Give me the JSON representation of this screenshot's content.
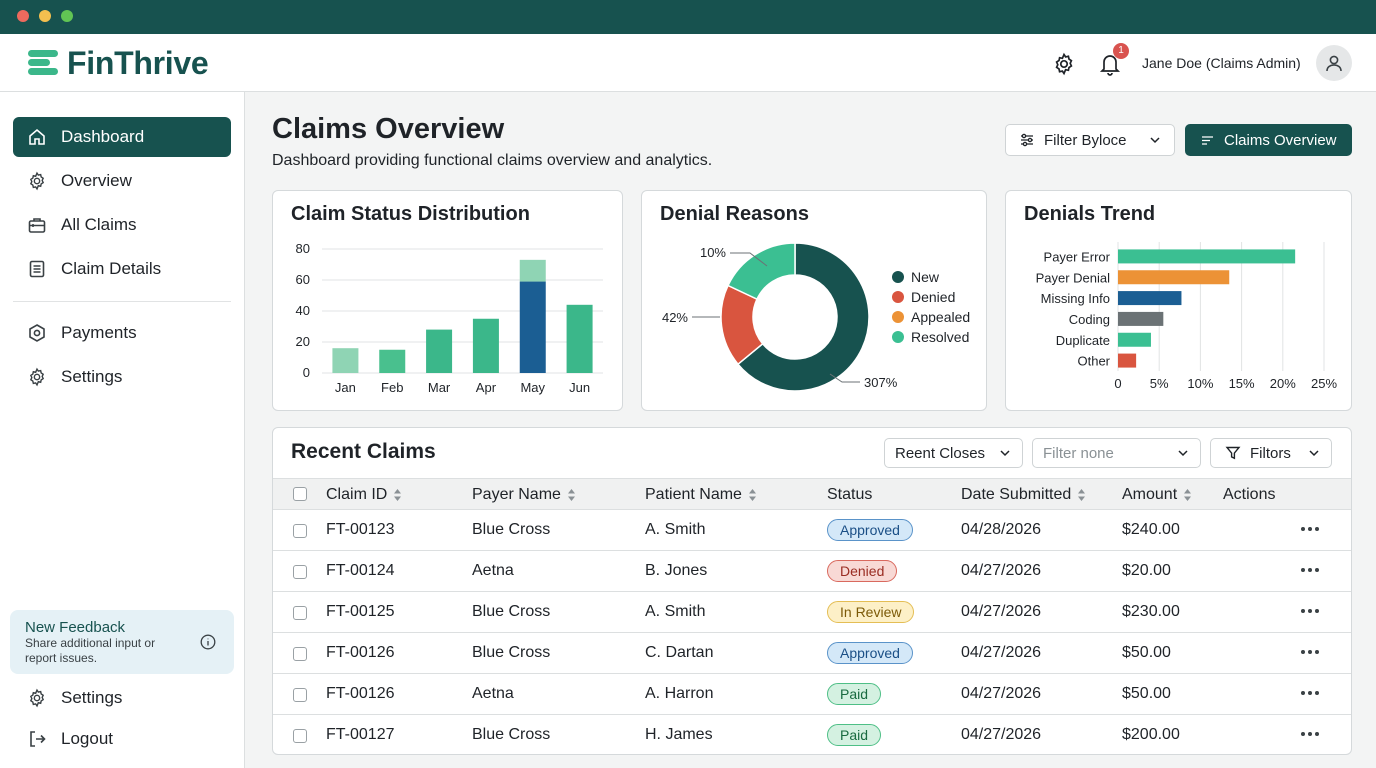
{
  "brand": {
    "name": "FinThrive",
    "primary": "#17524f",
    "accent": "#3bb78a"
  },
  "header": {
    "user": "Jane Doe (Claims Admin)",
    "notifications": "1",
    "settings_icon": "gear-icon",
    "bell_icon": "bell-icon",
    "avatar_icon": "user-icon"
  },
  "sidebar": {
    "items": [
      {
        "label": "Dashboard",
        "icon": "home-icon",
        "active": true
      },
      {
        "label": "Overview",
        "icon": "gear-icon"
      },
      {
        "label": "All Claims",
        "icon": "briefcase-icon"
      },
      {
        "label": "Claim Details",
        "icon": "document-icon"
      },
      {
        "label": "Payments",
        "icon": "payments-icon"
      },
      {
        "label": "Settings",
        "icon": "gear-icon"
      }
    ],
    "feedback": {
      "title": "New Feedback",
      "text": "Share additional input or report issues."
    },
    "bottom": [
      {
        "label": "Settings",
        "icon": "gear-icon"
      },
      {
        "label": "Logout",
        "icon": "logout-icon"
      }
    ]
  },
  "page": {
    "title": "Claims Overview",
    "subtitle": "Dashboard providing functional claims overview and analytics.",
    "filter_label": "Filter Byloce",
    "overview_button": "Claims Overview"
  },
  "charts": {
    "status_title": "Claim Status Distribution",
    "denial_title": "Denial Reasons",
    "trend_title": "Denials Trend"
  },
  "chart_data": [
    {
      "type": "bar",
      "title": "Claim Status Distribution",
      "categories": [
        "Jan",
        "Feb",
        "Mar",
        "Apr",
        "May",
        "Jun"
      ],
      "series": [
        {
          "values": [
            16,
            15,
            28,
            35,
            59,
            44
          ],
          "colors": [
            "#8fd4b4",
            "#49c08e",
            "#3bb78a",
            "#3bb78a",
            "#1b5e93",
            "#3bb78a"
          ]
        },
        {
          "values": [
            0,
            0,
            0,
            0,
            14,
            0
          ],
          "colors": [
            "#8fd4b4",
            "#8fd4b4",
            "#8fd4b4",
            "#8fd4b4",
            "#8fd4b4",
            "#8fd4b4"
          ]
        }
      ],
      "ylim": [
        0,
        80
      ],
      "yticks": [
        0,
        20,
        40,
        60,
        80
      ],
      "grid": true
    },
    {
      "type": "pie",
      "title": "Denial Reasons",
      "slices": [
        {
          "label": "New",
          "value": 64,
          "color": "#17524f"
        },
        {
          "label": "Denied",
          "value": 18,
          "color": "#d9553f"
        },
        {
          "label": "Appealed",
          "value": 0,
          "color": "#ec9236"
        },
        {
          "label": "Resolved",
          "value": 18,
          "color": "#3bbf92"
        }
      ],
      "annotations": [
        "10%",
        "42%",
        "307%"
      ],
      "legend": "right"
    },
    {
      "type": "bar",
      "orientation": "horizontal",
      "title": "Denials Trend",
      "categories": [
        "Payer Error",
        "Payer Denial",
        "Missing Info",
        "Coding",
        "Duplicate",
        "Other"
      ],
      "values": [
        21.5,
        13.5,
        7.7,
        5.5,
        4,
        2.2
      ],
      "colors": [
        "#3bbf92",
        "#ec9236",
        "#1b5e93",
        "#6b7275",
        "#3bbf92",
        "#d9553f"
      ],
      "xlim": [
        0,
        25
      ],
      "xticks": [
        "0",
        "5%",
        "10%",
        "15%",
        "20%",
        "25%"
      ],
      "grid": true
    }
  ],
  "table": {
    "title": "Recent Claims",
    "filters": {
      "sort": "Reent Closes",
      "filter_placeholder": "Filter none",
      "filters_button": "Filtors"
    },
    "columns": [
      "Claim ID",
      "Payer Name",
      "Patient Name",
      "Status",
      "Date Submitted",
      "Amount",
      "Actions"
    ],
    "rows": [
      {
        "id": "FT-00123",
        "payer": "Blue Cross",
        "patient": "A. Smith",
        "status": "Approved",
        "date": "04/28/2026",
        "amount": "$240.00"
      },
      {
        "id": "FT-00124",
        "payer": "Aetna",
        "patient": "B. Jones",
        "status": "Denied",
        "date": "04/27/2026",
        "amount": "$20.00"
      },
      {
        "id": "FT-00125",
        "payer": "Blue Cross",
        "patient": "A. Smith",
        "status": "In Review",
        "date": "04/27/2026",
        "amount": "$230.00"
      },
      {
        "id": "FT-00126",
        "payer": "Blue Cross",
        "patient": "C. Dartan",
        "status": "Approved",
        "date": "04/27/2026",
        "amount": "$50.00"
      },
      {
        "id": "FT-00126",
        "payer": "Aetna",
        "patient": "A. Harron",
        "status": "Paid",
        "date": "04/27/2026",
        "amount": "$50.00"
      },
      {
        "id": "FT-00127",
        "payer": "Blue Cross",
        "patient": "H. James",
        "status": "Paid",
        "date": "04/27/2026",
        "amount": "$200.00"
      }
    ],
    "status_colors": {
      "Approved": {
        "bg": "#d4e8f8",
        "border": "#5a93c9",
        "text": "#1b4f86"
      },
      "Denied": {
        "bg": "#f8d9d5",
        "border": "#d9695e",
        "text": "#9a2d23"
      },
      "In Review": {
        "bg": "#fdf0c7",
        "border": "#e4be55",
        "text": "#7c5a08"
      },
      "Paid": {
        "bg": "#d4f1e1",
        "border": "#4ebf86",
        "text": "#196a40"
      }
    }
  }
}
